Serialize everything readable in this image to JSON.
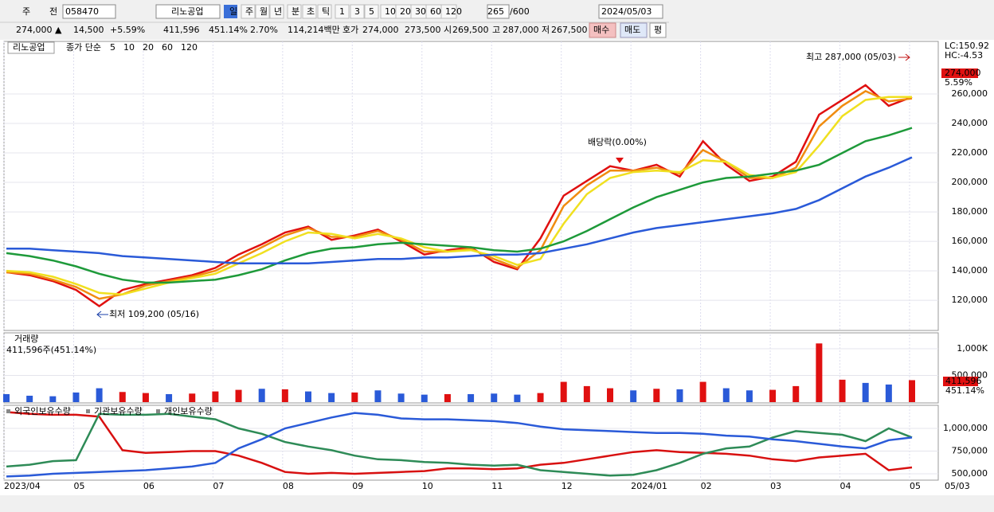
{
  "toolbar": [
    "주",
    "전",
    "058470",
    "리노공업",
    "일",
    "주",
    "월",
    "년",
    "분",
    "초",
    "틱",
    "1",
    "3",
    "5",
    "10",
    "20",
    "30",
    "60",
    "120",
    "265",
    "/600",
    "2024/05/03"
  ],
  "quote": [
    "274,000 ▲",
    "14,500",
    "+5.59%",
    "411,596",
    "451.14%",
    "2.70%",
    "114,214백만",
    "호가",
    "274,000",
    "273,500",
    "시",
    "269,500",
    "고",
    "287,000",
    "저",
    "267,500",
    "매수",
    "매도",
    "평"
  ],
  "chart_data": [
    {
      "type": "line",
      "title": "리노공업",
      "legend_prefix": "종가 단순",
      "ylim": [
        99500,
        295700
      ],
      "yticks": [
        {
          "value": 120000,
          "label": "120,000"
        },
        {
          "value": 140000,
          "label": "140,000"
        },
        {
          "value": 160000,
          "label": "160,000"
        },
        {
          "value": 180000,
          "label": "180,000"
        },
        {
          "value": 200000,
          "label": "200,000"
        },
        {
          "value": 220000,
          "label": "220,000"
        },
        {
          "value": 240000,
          "label": "240,000"
        },
        {
          "value": 260000,
          "label": "260,000"
        }
      ],
      "grid": true,
      "side_labels": [
        "LC:150.92",
        "HC:-4.53",
        "274,000",
        "5.59%"
      ],
      "annotations": [
        "최고 287,000 (05/03)",
        "최저 109,200 (05/16)",
        "배당락(0.00%)"
      ],
      "series": [
        {
          "name": "5",
          "color": "#e01010",
          "values": [
            139000,
            137000,
            133000,
            127000,
            116000,
            127000,
            131000,
            134000,
            137000,
            142000,
            151000,
            158000,
            166000,
            170000,
            161000,
            164000,
            168000,
            160000,
            151000,
            154000,
            156000,
            146000,
            141000,
            162000,
            191000,
            201000,
            211000,
            208000,
            212000,
            204000,
            228000,
            212000,
            201000,
            204000,
            214000,
            246000,
            256000,
            266000,
            252000,
            258000
          ]
        },
        {
          "name": "10",
          "color": "#f08c10",
          "values": [
            139000,
            138000,
            134000,
            129000,
            121000,
            124000,
            130000,
            133000,
            136000,
            140000,
            148000,
            156000,
            164000,
            169000,
            163000,
            163000,
            167000,
            161000,
            153000,
            153000,
            155000,
            148000,
            142000,
            154000,
            184000,
            198000,
            208000,
            208000,
            210000,
            206000,
            222000,
            214000,
            203000,
            203000,
            210000,
            238000,
            252000,
            262000,
            255000,
            257000
          ]
        },
        {
          "name": "20",
          "color": "#f0e020",
          "values": [
            140000,
            139000,
            136000,
            131000,
            125000,
            124000,
            128000,
            132000,
            135000,
            138000,
            145000,
            152000,
            160000,
            166000,
            165000,
            162000,
            165000,
            162000,
            156000,
            153000,
            154000,
            150000,
            144000,
            148000,
            172000,
            192000,
            203000,
            207000,
            208000,
            207000,
            215000,
            214000,
            205000,
            203000,
            207000,
            225000,
            245000,
            256000,
            258000,
            258000
          ]
        },
        {
          "name": "60",
          "color": "#1e9a3a",
          "values": [
            152000,
            150000,
            147000,
            143000,
            138000,
            134000,
            132000,
            132000,
            133000,
            134000,
            137000,
            141000,
            147000,
            152000,
            155000,
            156000,
            158000,
            159000,
            158000,
            157000,
            156000,
            154000,
            153000,
            155000,
            160000,
            167000,
            175000,
            183000,
            190000,
            195000,
            200000,
            203000,
            204000,
            206000,
            208000,
            212000,
            220000,
            228000,
            232000,
            237000
          ]
        },
        {
          "name": "120",
          "color": "#2a5ad8",
          "values": [
            155000,
            155000,
            154000,
            153000,
            152000,
            150000,
            149000,
            148000,
            147000,
            146000,
            145000,
            145000,
            145000,
            145000,
            146000,
            147000,
            148000,
            148000,
            149000,
            149000,
            150000,
            151000,
            151000,
            152000,
            155000,
            158000,
            162000,
            166000,
            169000,
            171000,
            173000,
            175000,
            177000,
            179000,
            182000,
            188000,
            196000,
            204000,
            210000,
            217000
          ]
        }
      ]
    },
    {
      "type": "bar",
      "title": "거래량",
      "subtitle": "411,596주(451.14%)",
      "ylim": [
        0,
        1268700
      ],
      "yticks": [
        {
          "value": 1000000,
          "label": "1,000K"
        },
        {
          "value": 500000,
          "label": "500,000"
        }
      ],
      "side_labels": [
        "411,596",
        "451.14%"
      ],
      "values": [
        150000,
        120000,
        110000,
        180000,
        260000,
        190000,
        170000,
        150000,
        160000,
        200000,
        230000,
        250000,
        240000,
        200000,
        170000,
        180000,
        220000,
        160000,
        140000,
        150000,
        150000,
        160000,
        140000,
        170000,
        380000,
        300000,
        260000,
        220000,
        250000,
        240000,
        380000,
        260000,
        220000,
        230000,
        300000,
        1100000,
        420000,
        360000,
        330000,
        411596
      ],
      "colors": [
        "#2a5ad8",
        "#2a5ad8",
        "#2a5ad8",
        "#2a5ad8",
        "#2a5ad8",
        "#e01010",
        "#e01010",
        "#2a5ad8",
        "#e01010",
        "#e01010",
        "#e01010",
        "#2a5ad8",
        "#e01010",
        "#2a5ad8",
        "#2a5ad8",
        "#e01010",
        "#2a5ad8",
        "#2a5ad8",
        "#2a5ad8",
        "#e01010",
        "#2a5ad8",
        "#2a5ad8",
        "#2a5ad8",
        "#e01010",
        "#e01010",
        "#e01010",
        "#e01010",
        "#2a5ad8",
        "#e01010",
        "#2a5ad8",
        "#e01010",
        "#2a5ad8",
        "#2a5ad8",
        "#e01010",
        "#e01010",
        "#e01010",
        "#e01010",
        "#2a5ad8",
        "#2a5ad8",
        "#e01010"
      ]
    },
    {
      "type": "line",
      "ylim": [
        430000,
        1245600
      ],
      "yticks": [
        {
          "value": 1000000,
          "label": "1,000,000"
        },
        {
          "value": 750000,
          "label": "750,000"
        },
        {
          "value": 500000,
          "label": "500,000"
        }
      ],
      "grid": true,
      "categories": [
        "2023/04",
        null,
        null,
        "05",
        null,
        null,
        "06",
        null,
        null,
        "07",
        null,
        null,
        "08",
        null,
        null,
        "09",
        null,
        null,
        "10",
        null,
        null,
        "11",
        null,
        null,
        "12",
        null,
        null,
        "2024/01",
        null,
        null,
        "02",
        null,
        null,
        "03",
        null,
        null,
        "04",
        null,
        null,
        "05"
      ],
      "x_current": "05/03",
      "series": [
        {
          "name": "외국인보유수량",
          "color": "#d81010",
          "values": [
            1180000,
            1160000,
            1150000,
            1150000,
            1130000,
            760000,
            730000,
            740000,
            750000,
            750000,
            700000,
            620000,
            520000,
            500000,
            510000,
            500000,
            510000,
            520000,
            530000,
            560000,
            560000,
            550000,
            560000,
            600000,
            620000,
            660000,
            700000,
            740000,
            760000,
            740000,
            730000,
            720000,
            700000,
            660000,
            640000,
            680000,
            700000,
            720000,
            540000,
            570000
          ]
        },
        {
          "name": "기관보유수량",
          "color": "#2e8b57",
          "values": [
            580000,
            600000,
            640000,
            650000,
            1160000,
            1150000,
            1150000,
            1160000,
            1130000,
            1100000,
            1000000,
            940000,
            850000,
            800000,
            760000,
            700000,
            660000,
            650000,
            630000,
            620000,
            600000,
            590000,
            600000,
            540000,
            520000,
            500000,
            480000,
            490000,
            540000,
            620000,
            720000,
            780000,
            800000,
            900000,
            970000,
            950000,
            930000,
            860000,
            1000000,
            900000
          ]
        },
        {
          "name": "개인보유수량",
          "color": "#2a5ad8",
          "values": [
            470000,
            480000,
            500000,
            510000,
            520000,
            530000,
            540000,
            560000,
            580000,
            620000,
            780000,
            880000,
            1000000,
            1060000,
            1120000,
            1170000,
            1150000,
            1110000,
            1100000,
            1100000,
            1090000,
            1080000,
            1060000,
            1020000,
            990000,
            980000,
            970000,
            960000,
            950000,
            950000,
            940000,
            920000,
            910000,
            880000,
            860000,
            830000,
            800000,
            780000,
            870000,
            900000
          ]
        }
      ]
    }
  ]
}
